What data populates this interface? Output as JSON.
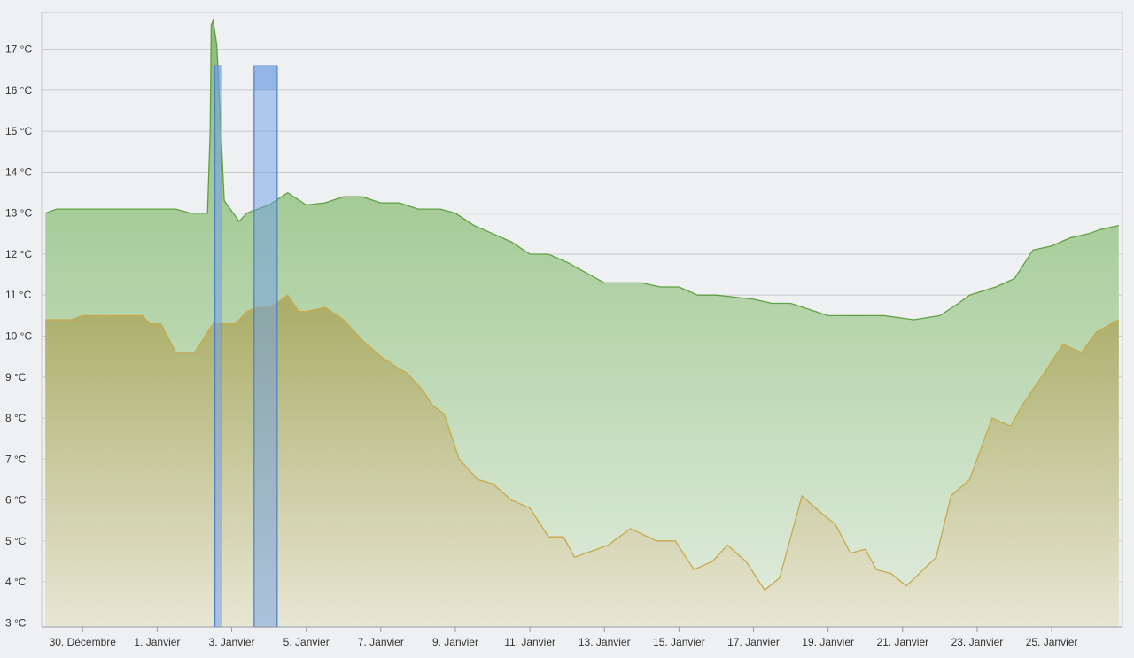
{
  "chart_data": {
    "type": "area",
    "title": "",
    "xlabel": "",
    "ylabel": "",
    "ylim": [
      2.9,
      17.9
    ],
    "y_unit": "°C",
    "y_ticks": [
      3,
      4,
      5,
      6,
      7,
      8,
      9,
      10,
      11,
      12,
      13,
      14,
      15,
      16,
      17
    ],
    "y_tick_labels": [
      "3 °C",
      "4 °C",
      "5 °C",
      "6 °C",
      "7 °C",
      "8 °C",
      "9 °C",
      "10 °C",
      "11 °C",
      "12 °C",
      "13 °C",
      "14 °C",
      "15 °C",
      "16 °C",
      "17 °C"
    ],
    "x_unit": "days (0 = 29 Décembre)",
    "xlim": [
      -0.1,
      28.9
    ],
    "x_ticks": [
      1,
      3,
      5,
      7,
      9,
      11,
      13,
      15,
      17,
      19,
      21,
      23,
      25,
      27
    ],
    "x_tick_labels": [
      "30. Décembre",
      "1. Janvier",
      "3. Janvier",
      "5. Janvier",
      "7. Janvier",
      "9. Janvier",
      "11. Janvier",
      "13. Janvier",
      "15. Janvier",
      "17. Janvier",
      "19. Janvier",
      "21. Janvier",
      "23. Janvier",
      "25. Janvier"
    ],
    "grid": true,
    "colors": {
      "upper_line": "#5fa044",
      "upper_fill_top": "#8bbd78",
      "upper_fill_bottom": "#e2ede0",
      "lower_line": "#c9a84a",
      "lower_fill_top": "#a7a65a",
      "lower_fill_bottom": "#e8e5d2",
      "bar_fill": "#6f9de3",
      "bar_line": "#4b7fd1"
    },
    "series": [
      {
        "kind": "upper",
        "x": [
          0,
          0.3,
          1,
          2,
          2.5,
          3.5,
          3.9,
          4.35,
          4.42,
          4.45,
          4.5,
          4.6,
          4.8,
          5.2,
          5.4,
          5.7,
          6,
          6.5,
          7,
          7.5,
          8,
          8.5,
          9,
          9.5,
          10,
          10.6,
          11,
          11.5,
          12,
          12.5,
          13,
          13.5,
          14,
          15,
          16,
          16.5,
          17,
          17.5,
          18,
          19,
          19.5,
          20,
          21,
          21.3,
          21.8,
          22.5,
          23.3,
          24,
          24.5,
          24.8,
          25.5,
          26,
          26.5,
          27,
          27.5,
          28,
          28.3,
          28.8
        ],
        "y": [
          13.0,
          13.1,
          13.1,
          13.1,
          13.1,
          13.1,
          13.0,
          13.0,
          15.0,
          17.6,
          17.7,
          17.1,
          13.3,
          12.8,
          13.0,
          13.1,
          13.2,
          13.5,
          13.2,
          13.25,
          13.4,
          13.4,
          13.25,
          13.25,
          13.1,
          13.1,
          13.0,
          12.7,
          12.5,
          12.3,
          12.0,
          12.0,
          11.8,
          11.3,
          11.3,
          11.2,
          11.2,
          11.0,
          11.0,
          10.9,
          10.8,
          10.8,
          10.5,
          10.5,
          10.5,
          10.5,
          10.4,
          10.5,
          10.8,
          11.0,
          11.2,
          11.4,
          12.1,
          12.2,
          12.4,
          12.5,
          12.6,
          12.7
        ]
      },
      {
        "kind": "lower",
        "x": [
          0,
          0.7,
          1,
          1.2,
          1.5,
          2,
          2.6,
          2.8,
          3.1,
          3.5,
          4.0,
          4.5,
          5.1,
          5.4,
          5.7,
          6,
          6.2,
          6.5,
          6.8,
          7,
          7.5,
          8,
          8.5,
          9,
          9.5,
          9.7,
          10.1,
          10.4,
          10.7,
          11.1,
          11.6,
          12,
          12.5,
          13,
          13.5,
          13.9,
          14.2,
          15.1,
          15.7,
          16.4,
          16.9,
          17.4,
          17.9,
          18.3,
          18.8,
          19.3,
          19.7,
          20.3,
          20.8,
          21.2,
          21.6,
          22,
          22.3,
          22.7,
          23.1,
          23.9,
          24.3,
          24.8,
          25.4,
          25.9,
          26.2,
          26.8,
          27.3,
          27.8,
          28.2,
          28.8
        ],
        "y": [
          10.4,
          10.4,
          10.5,
          10.5,
          10.5,
          10.5,
          10.5,
          10.3,
          10.3,
          9.6,
          9.6,
          10.3,
          10.3,
          10.6,
          10.7,
          10.7,
          10.8,
          11.0,
          10.6,
          10.6,
          10.7,
          10.4,
          9.9,
          9.5,
          9.2,
          9.1,
          8.7,
          8.3,
          8.1,
          7.0,
          6.5,
          6.4,
          6.0,
          5.8,
          5.1,
          5.1,
          4.6,
          4.9,
          5.3,
          5.0,
          5.0,
          4.3,
          4.5,
          4.9,
          4.5,
          3.8,
          4.1,
          6.1,
          5.7,
          5.4,
          4.7,
          4.8,
          4.3,
          4.2,
          3.9,
          4.6,
          6.1,
          6.5,
          8.0,
          7.8,
          8.3,
          9.1,
          9.8,
          9.6,
          10.1,
          10.4
        ]
      }
    ],
    "bars": [
      {
        "x_start": 4.55,
        "x_end": 4.72,
        "value": 16.6
      },
      {
        "x_start": 5.6,
        "x_end": 6.22,
        "value": 16.6
      }
    ]
  }
}
